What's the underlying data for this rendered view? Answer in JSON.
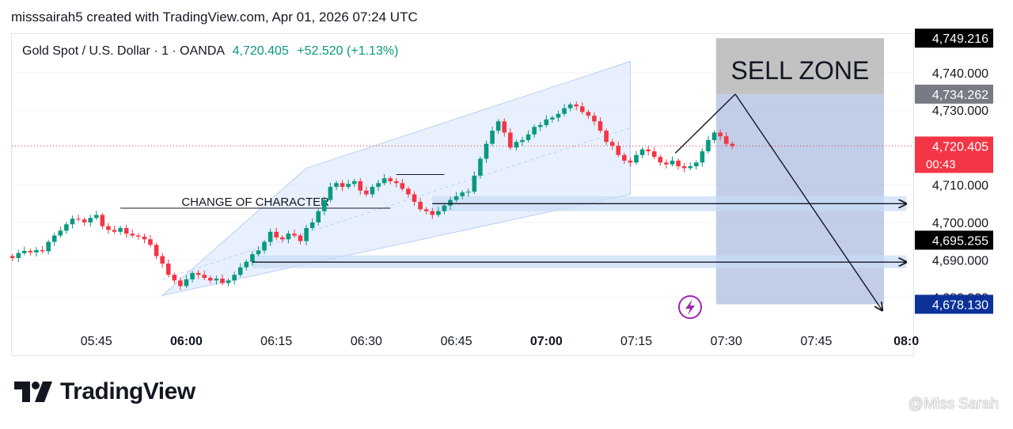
{
  "header": {
    "attribution": "misssairah5 created with TradingView.com, Apr 01, 2026 07:24 UTC"
  },
  "symbol": {
    "name": "Gold Spot / U.S. Dollar · 1 · OANDA",
    "price": "4,720.405",
    "change": "+52.520 (+1.13%)"
  },
  "brand": {
    "name": "TradingView"
  },
  "watermark": "@Miss Sarah",
  "colors": {
    "up": "#089981",
    "down": "#f23645",
    "channel": "#d6e4fb",
    "zone": "#8fa6d6",
    "zone_top": "#c2c2c2"
  },
  "chart_data": {
    "type": "candlestick",
    "instrument": "Gold Spot / U.S. Dollar",
    "timeframe": "1",
    "exchange": "OANDA",
    "x_ticks": [
      {
        "label": "05:45",
        "min": -15,
        "bold": false
      },
      {
        "label": "06:00",
        "min": 0,
        "bold": true
      },
      {
        "label": "06:15",
        "min": 15,
        "bold": false
      },
      {
        "label": "06:30",
        "min": 30,
        "bold": false
      },
      {
        "label": "06:45",
        "min": 45,
        "bold": false
      },
      {
        "label": "07:00",
        "min": 60,
        "bold": true
      },
      {
        "label": "07:15",
        "min": 75,
        "bold": false
      },
      {
        "label": "07:30",
        "min": 90,
        "bold": false
      },
      {
        "label": "07:45",
        "min": 105,
        "bold": false
      },
      {
        "label": "08:0",
        "min": 120,
        "bold": true
      }
    ],
    "y_ticks": [
      "4,740.000",
      "4,730.000",
      "4,710.000",
      "4,700.000",
      "4,690.000",
      "4,680.000"
    ],
    "y_tick_values": [
      4740,
      4730,
      4710,
      4700,
      4690,
      4680
    ],
    "price_labels": [
      {
        "value": 4749.216,
        "text": "4,749.216",
        "bg": "#000000",
        "color": "#ffffff"
      },
      {
        "value": 4734.262,
        "text": "4,734.262",
        "bg": "#787b86",
        "color": "#ffffff"
      },
      {
        "value": 4720.405,
        "text": "4,720.405",
        "sub": "00:43",
        "bg": "#f23645",
        "color": "#ffffff"
      },
      {
        "value": 4695.255,
        "text": "4,695.255",
        "bg": "#000000",
        "color": "#ffffff"
      },
      {
        "value": 4678.13,
        "text": "4,678.130",
        "bg": "#0c3299",
        "color": "#ffffff"
      }
    ],
    "close_series": [
      4690.5,
      4691.8,
      4692.4,
      4692.0,
      4692.6,
      4692.3,
      4694.8,
      4696.5,
      4697.8,
      4699.5,
      4701.0,
      4700.8,
      4700.0,
      4701.2,
      4702.0,
      4699.0,
      4698.0,
      4697.5,
      4698.5,
      4697.0,
      4696.5,
      4696.2,
      4695.5,
      4694.0,
      4691.0,
      4689.0,
      4686.0,
      4684.5,
      4683.0,
      4684.8,
      4686.5,
      4686.0,
      4685.2,
      4684.5,
      4685.0,
      4683.8,
      4684.5,
      4686.0,
      4688.0,
      4689.5,
      4691.5,
      4692.5,
      4694.8,
      4697.5,
      4696.0,
      4695.5,
      4697.0,
      4696.5,
      4695.0,
      4698.5,
      4700.0,
      4703.0,
      4706.0,
      4709.5,
      4710.5,
      4709.5,
      4710.3,
      4711.0,
      4708.5,
      4707.5,
      4709.5,
      4710.5,
      4711.8,
      4711.0,
      4710.5,
      4709.0,
      4707.5,
      4705.5,
      4703.5,
      4703.0,
      4702.0,
      4703.0,
      4704.5,
      4706.0,
      4707.0,
      4708.0,
      4708.2,
      4712.5,
      4717.0,
      4721.0,
      4724.5,
      4727.0,
      4724.0,
      4720.0,
      4721.5,
      4722.0,
      4723.5,
      4725.5,
      4726.0,
      4727.5,
      4728.0,
      4729.0,
      4730.5,
      4731.5,
      4731.0,
      4729.5,
      4728.5,
      4727.0,
      4724.5,
      4721.5,
      4720.5,
      4718.0,
      4716.5,
      4716.0,
      4718.0,
      4719.5,
      4719.0,
      4717.5,
      4716.0,
      4715.5,
      4716.5,
      4715.0,
      4714.5,
      4715.0,
      4716.0,
      4719.0,
      4722.0,
      4724.0,
      4723.0,
      4721.0,
      4720.405
    ],
    "channel": {
      "lower": [
        [
          -4,
          4680.5
        ],
        [
          74,
          4707.5
        ]
      ],
      "upper": [
        [
          20,
          4714.5
        ],
        [
          74,
          4743.0
        ]
      ]
    },
    "horizontal_levels": [
      {
        "start": -11,
        "end": 34,
        "price": 4703.8,
        "label": "CHANGE OF CHARACTER"
      },
      {
        "start": 35,
        "end": 43,
        "price": 4712.8
      }
    ],
    "zones": [
      {
        "from": 41,
        "to": 120,
        "low": 4703.0,
        "high": 4707.0
      },
      {
        "from": 11,
        "to": 120,
        "low": 4687.8,
        "high": 4691.2
      }
    ],
    "arrows": [
      {
        "from": [
          41,
          4705.0
        ],
        "to": [
          120,
          4705.0
        ]
      },
      {
        "from": [
          11,
          4689.4
        ],
        "to": [
          120,
          4689.4
        ]
      },
      {
        "from": [
          81.5,
          4718.5
        ],
        "to": [
          91.5,
          4734.262
        ]
      },
      {
        "from": [
          91.5,
          4734.262
        ],
        "to": [
          116,
          4676.5
        ]
      }
    ],
    "sell_zone": {
      "label": "SELL ZONE",
      "from": 88.3,
      "to": 116.3,
      "top": 4749.216,
      "mid": 4734.262,
      "bottom": 4678.13
    },
    "last_price": 4720.405
  }
}
